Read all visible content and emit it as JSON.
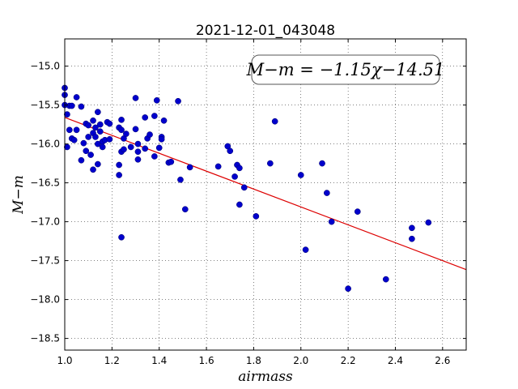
{
  "chart_data": {
    "type": "scatter",
    "title": "2021-12-01_043048",
    "xlabel": "airmass",
    "ylabel": "M−m",
    "xlim": [
      1.0,
      2.7
    ],
    "ylim": [
      -18.65,
      -14.65
    ],
    "y_inverted": true,
    "grid": true,
    "x_ticks": [
      1.0,
      1.2,
      1.4,
      1.6,
      1.8,
      2.0,
      2.2,
      2.4,
      2.6
    ],
    "y_ticks": [
      -15.0,
      -15.5,
      -16.0,
      -16.5,
      -17.0,
      -17.5,
      -18.0,
      -18.5
    ],
    "x_tick_labels": [
      "1.0",
      "1.2",
      "1.4",
      "1.6",
      "1.8",
      "2.0",
      "2.2",
      "2.4",
      "2.6"
    ],
    "y_tick_labels": [
      "−15.0",
      "−15.5",
      "−16.0",
      "−16.5",
      "−17.0",
      "−17.5",
      "−18.0",
      "−18.5"
    ],
    "annotation": "M−m = −1.15χ−14.51",
    "fit": {
      "slope": -1.15,
      "intercept": -14.51
    },
    "colors": {
      "points": "#0000cc",
      "fit_line": "#dd0000"
    },
    "points": [
      {
        "x": 1.0,
        "y": -15.28
      },
      {
        "x": 1.0,
        "y": -15.37
      },
      {
        "x": 1.0,
        "y": -15.5
      },
      {
        "x": 1.01,
        "y": -15.62
      },
      {
        "x": 1.01,
        "y": -16.04
      },
      {
        "x": 1.02,
        "y": -15.51
      },
      {
        "x": 1.02,
        "y": -15.82
      },
      {
        "x": 1.03,
        "y": -15.51
      },
      {
        "x": 1.03,
        "y": -15.93
      },
      {
        "x": 1.04,
        "y": -15.95
      },
      {
        "x": 1.05,
        "y": -15.4
      },
      {
        "x": 1.05,
        "y": -15.82
      },
      {
        "x": 1.07,
        "y": -15.52
      },
      {
        "x": 1.07,
        "y": -16.21
      },
      {
        "x": 1.08,
        "y": -15.99
      },
      {
        "x": 1.09,
        "y": -16.09
      },
      {
        "x": 1.09,
        "y": -15.74
      },
      {
        "x": 1.1,
        "y": -15.91
      },
      {
        "x": 1.1,
        "y": -15.76
      },
      {
        "x": 1.11,
        "y": -16.14
      },
      {
        "x": 1.12,
        "y": -15.7
      },
      {
        "x": 1.12,
        "y": -15.86
      },
      {
        "x": 1.12,
        "y": -16.33
      },
      {
        "x": 1.13,
        "y": -15.79
      },
      {
        "x": 1.13,
        "y": -15.91
      },
      {
        "x": 1.14,
        "y": -15.59
      },
      {
        "x": 1.14,
        "y": -16.0
      },
      {
        "x": 1.14,
        "y": -16.26
      },
      {
        "x": 1.15,
        "y": -15.75
      },
      {
        "x": 1.15,
        "y": -15.84
      },
      {
        "x": 1.16,
        "y": -15.97
      },
      {
        "x": 1.16,
        "y": -16.04
      },
      {
        "x": 1.17,
        "y": -15.95
      },
      {
        "x": 1.18,
        "y": -15.72
      },
      {
        "x": 1.19,
        "y": -15.74
      },
      {
        "x": 1.19,
        "y": -15.94
      },
      {
        "x": 1.23,
        "y": -16.4
      },
      {
        "x": 1.23,
        "y": -16.27
      },
      {
        "x": 1.23,
        "y": -15.79
      },
      {
        "x": 1.24,
        "y": -15.69
      },
      {
        "x": 1.24,
        "y": -15.82
      },
      {
        "x": 1.24,
        "y": -16.1
      },
      {
        "x": 1.24,
        "y": -17.2
      },
      {
        "x": 1.25,
        "y": -15.93
      },
      {
        "x": 1.25,
        "y": -16.07
      },
      {
        "x": 1.26,
        "y": -15.87
      },
      {
        "x": 1.28,
        "y": -16.04
      },
      {
        "x": 1.3,
        "y": -15.41
      },
      {
        "x": 1.3,
        "y": -15.81
      },
      {
        "x": 1.31,
        "y": -16.1
      },
      {
        "x": 1.31,
        "y": -16.2
      },
      {
        "x": 1.31,
        "y": -16.0
      },
      {
        "x": 1.34,
        "y": -15.66
      },
      {
        "x": 1.34,
        "y": -16.06
      },
      {
        "x": 1.35,
        "y": -15.93
      },
      {
        "x": 1.36,
        "y": -15.88
      },
      {
        "x": 1.38,
        "y": -15.64
      },
      {
        "x": 1.38,
        "y": -16.16
      },
      {
        "x": 1.39,
        "y": -15.44
      },
      {
        "x": 1.4,
        "y": -16.05
      },
      {
        "x": 1.41,
        "y": -15.91
      },
      {
        "x": 1.41,
        "y": -15.94
      },
      {
        "x": 1.42,
        "y": -15.7
      },
      {
        "x": 1.44,
        "y": -16.24
      },
      {
        "x": 1.45,
        "y": -16.23
      },
      {
        "x": 1.48,
        "y": -15.45
      },
      {
        "x": 1.49,
        "y": -16.46
      },
      {
        "x": 1.51,
        "y": -16.84
      },
      {
        "x": 1.53,
        "y": -16.3
      },
      {
        "x": 1.65,
        "y": -16.29
      },
      {
        "x": 1.69,
        "y": -16.03
      },
      {
        "x": 1.7,
        "y": -16.09
      },
      {
        "x": 1.72,
        "y": -16.42
      },
      {
        "x": 1.73,
        "y": -16.27
      },
      {
        "x": 1.74,
        "y": -16.31
      },
      {
        "x": 1.74,
        "y": -16.78
      },
      {
        "x": 1.76,
        "y": -16.56
      },
      {
        "x": 1.81,
        "y": -16.93
      },
      {
        "x": 1.87,
        "y": -16.25
      },
      {
        "x": 1.89,
        "y": -15.71
      },
      {
        "x": 2.0,
        "y": -16.4
      },
      {
        "x": 2.02,
        "y": -17.36
      },
      {
        "x": 2.09,
        "y": -16.25
      },
      {
        "x": 2.11,
        "y": -16.63
      },
      {
        "x": 2.13,
        "y": -17.0
      },
      {
        "x": 2.2,
        "y": -17.86
      },
      {
        "x": 2.24,
        "y": -16.87
      },
      {
        "x": 2.36,
        "y": -17.74
      },
      {
        "x": 2.47,
        "y": -17.08
      },
      {
        "x": 2.47,
        "y": -17.22
      },
      {
        "x": 2.54,
        "y": -17.01
      }
    ]
  }
}
